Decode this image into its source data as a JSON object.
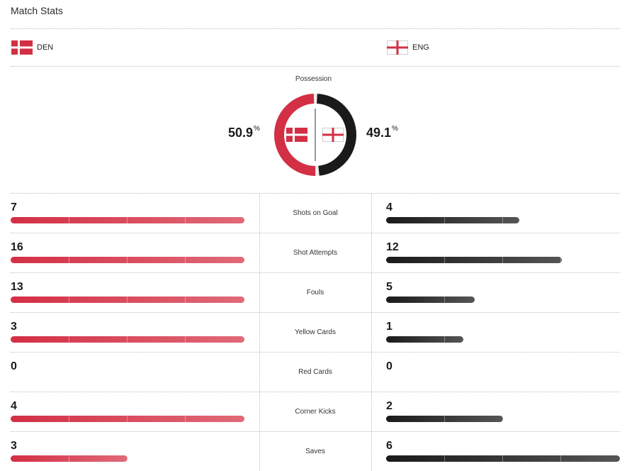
{
  "header": {
    "title": "Match Stats"
  },
  "teams": {
    "home": {
      "abbr": "DEN",
      "flag_icon": "denmark-flag-icon",
      "color": "#d32f45"
    },
    "away": {
      "abbr": "ENG",
      "flag_icon": "england-flag-icon",
      "color": "#1a1a1a"
    }
  },
  "possession": {
    "label": "Possession",
    "home_value": "50.9",
    "away_value": "49.1",
    "unit": "%"
  },
  "scale_max": 20,
  "stats": [
    {
      "label": "Shots on Goal",
      "home": 7,
      "away": 4,
      "home_bar": 1.0,
      "away_bar": 0.57
    },
    {
      "label": "Shot Attempts",
      "home": 16,
      "away": 12,
      "home_bar": 1.0,
      "away_bar": 0.75
    },
    {
      "label": "Fouls",
      "home": 13,
      "away": 5,
      "home_bar": 1.0,
      "away_bar": 0.38
    },
    {
      "label": "Yellow Cards",
      "home": 3,
      "away": 1,
      "home_bar": 1.0,
      "away_bar": 0.33
    },
    {
      "label": "Red Cards",
      "home": 0,
      "away": 0,
      "home_bar": 0,
      "away_bar": 0
    },
    {
      "label": "Corner Kicks",
      "home": 4,
      "away": 2,
      "home_bar": 1.0,
      "away_bar": 0.5
    },
    {
      "label": "Saves",
      "home": 3,
      "away": 6,
      "home_bar": 0.5,
      "away_bar": 1.0
    }
  ]
}
